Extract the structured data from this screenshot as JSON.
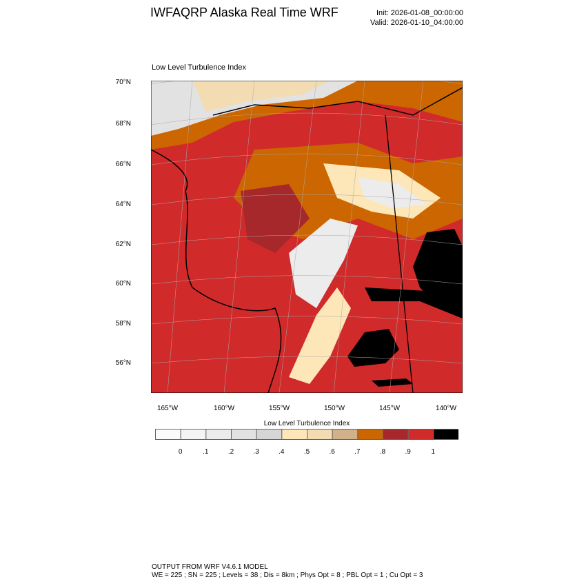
{
  "header": {
    "title": "IWFAQRP Alaska Real Time WRF",
    "init": "Init: 2026-01-08_00:00:00",
    "valid": "Valid: 2026-01-10_04:00:00"
  },
  "chart_data": {
    "type": "heatmap",
    "title": "Low Level Turbulence Index",
    "lat_ticks": [
      "70°N",
      "68°N",
      "66°N",
      "64°N",
      "62°N",
      "60°N",
      "58°N",
      "56°N"
    ],
    "lon_ticks": [
      "165°W",
      "160°W",
      "155°W",
      "150°W",
      "145°W",
      "140°W"
    ],
    "colorbar": {
      "title": "Low Level Turbulence Index",
      "labels": [
        "0",
        ".1",
        ".2",
        ".3",
        ".4",
        ".5",
        ".6",
        ".7",
        ".8",
        ".9",
        "1"
      ],
      "colors": [
        "#fbfbfb",
        "#f4f4f4",
        "#ececec",
        "#e2e2e2",
        "#d6d6d6",
        "#fde6b7",
        "#f3dcb2",
        "#d2b18a",
        "#cc6600",
        "#a6282a",
        "#d12a2a",
        "#000000"
      ]
    }
  },
  "footer": {
    "line1": "OUTPUT FROM WRF V4.6.1 MODEL",
    "line2": "WE = 225 ; SN = 225 ; Levels = 38 ; Dis = 8km ; Phys Opt = 8 ; PBL Opt = 1 ; Cu Opt = 3"
  }
}
